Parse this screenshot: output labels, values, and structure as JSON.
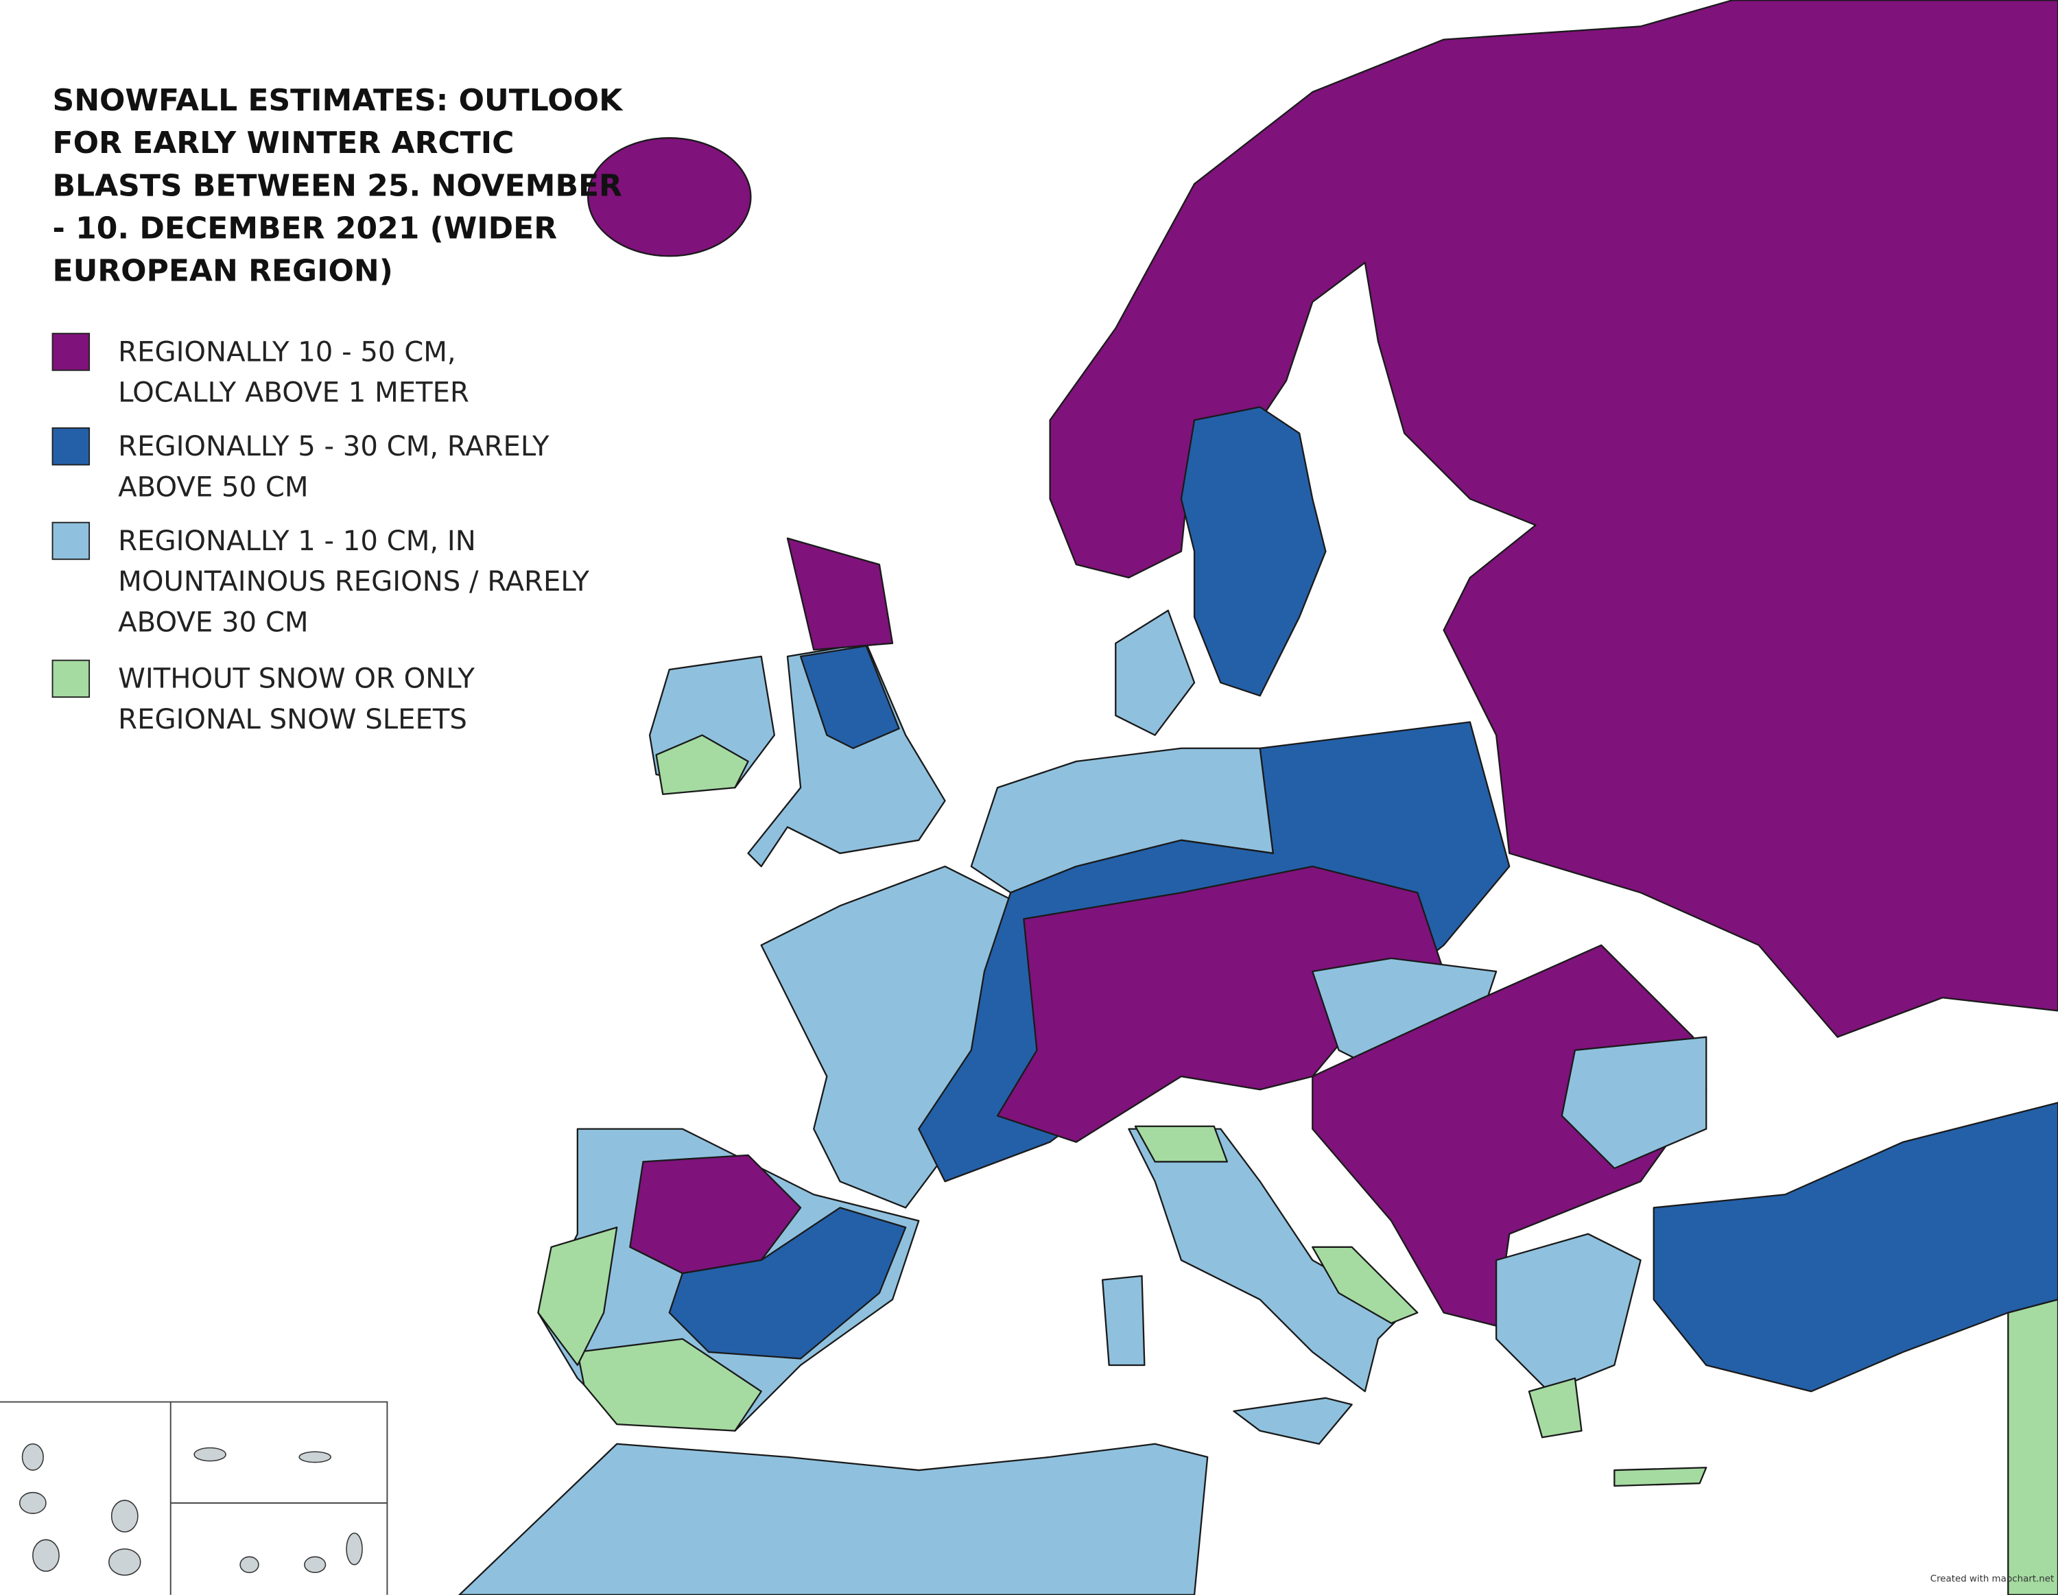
{
  "title": [
    "SNOWFALL ESTIMATES: OUTLOOK",
    "FOR EARLY WINTER ARCTIC",
    "BLASTS BETWEEN 25. NOVEMBER",
    "- 10. DECEMBER 2021 (WIDER",
    "EUROPEAN REGION)"
  ],
  "legend": [
    {
      "color": "#7f127b",
      "label": [
        "REGIONALLY 10 - 50 CM,",
        "LOCALLY ABOVE 1 METER"
      ]
    },
    {
      "color": "#2460a8",
      "label": [
        "REGIONALLY 5 - 30 CM, RARELY",
        "ABOVE 50 CM"
      ]
    },
    {
      "color": "#8fc1de",
      "label": [
        "REGIONALLY 1 - 10 CM, IN",
        "MOUNTAINOUS REGIONS / RARELY",
        "ABOVE 30 CM"
      ]
    },
    {
      "color": "#a5dba1",
      "label": [
        "WITHOUT SNOW OR ONLY",
        "REGIONAL SNOW SLEETS"
      ]
    }
  ],
  "credit": "Created with mapchart.net"
}
